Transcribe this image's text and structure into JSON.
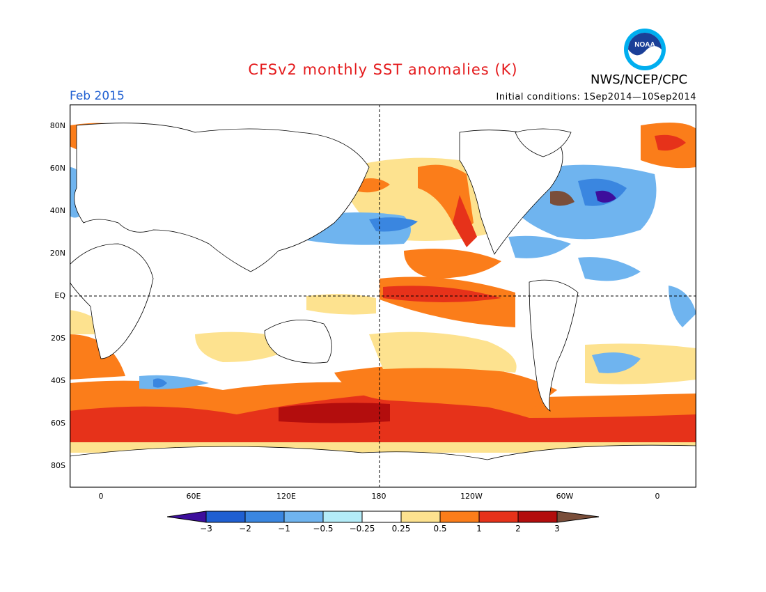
{
  "header": {
    "title": "CFSv2 monthly SST anomalies (K)",
    "agency": "NWS/NCEP/CPC",
    "logo_text": "NOAA",
    "valid_month": "Feb 2015",
    "initial_conditions": "Initial conditions: 1Sep2014—10Sep2014"
  },
  "axes": {
    "lat_labels": [
      "80N",
      "60N",
      "40N",
      "20N",
      "EQ",
      "20S",
      "40S",
      "60S",
      "80S"
    ],
    "lon_labels": [
      "0",
      "60E",
      "120E",
      "180",
      "120W",
      "60W",
      "0"
    ]
  },
  "colorbar": {
    "labels": [
      "−3",
      "−2",
      "−1",
      "−0.5",
      "−0.25",
      "0.25",
      "0.5",
      "1",
      "2",
      "3"
    ],
    "colors": [
      "#3d0e9c",
      "#1f5fd1",
      "#3a86e0",
      "#6fb4ef",
      "#b4ecf8",
      "#ffffff",
      "#fde28f",
      "#fb7d1a",
      "#e6321a",
      "#b30d0d",
      "#7a4e3a"
    ]
  }
}
